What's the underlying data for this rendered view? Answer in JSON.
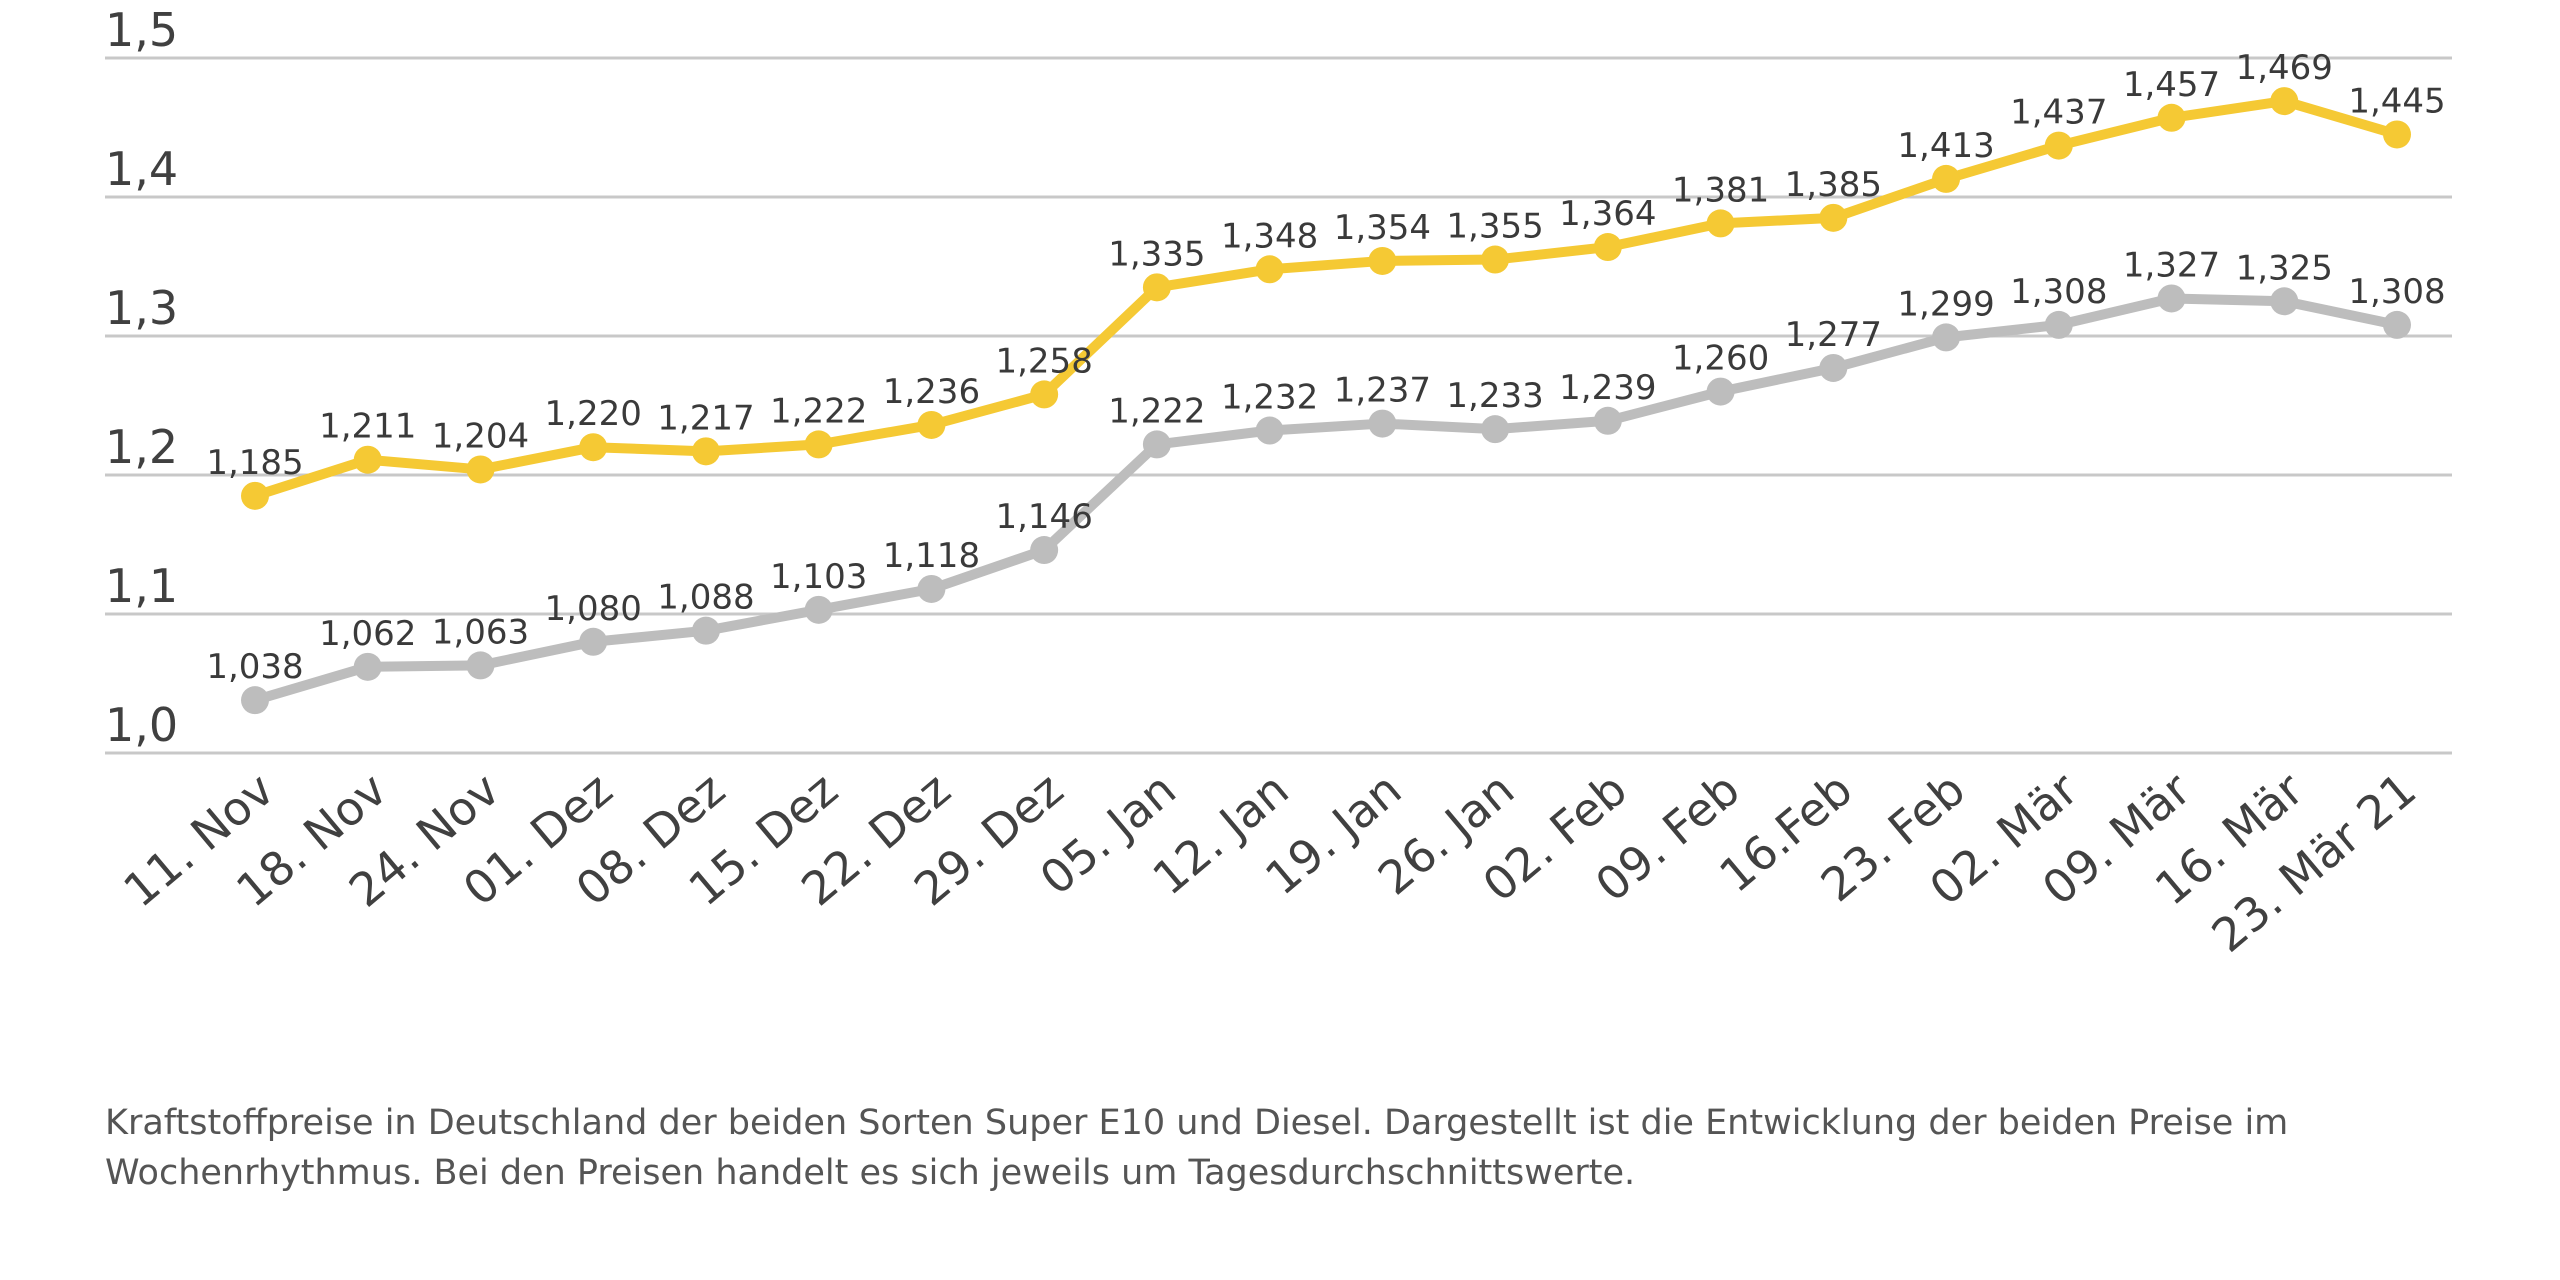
{
  "chart_data": {
    "type": "line",
    "title": "",
    "xlabel": "",
    "ylabel": "",
    "ylim": [
      1.0,
      1.5
    ],
    "yticks": [
      "1,0",
      "1,1",
      "1,2",
      "1,3",
      "1,4",
      "1,5"
    ],
    "yticks_values": [
      1.0,
      1.1,
      1.2,
      1.3,
      1.4,
      1.5
    ],
    "grid": true,
    "legend": "none",
    "categories": [
      "11. Nov",
      "18. Nov",
      "24. Nov",
      "01. Dez",
      "08. Dez",
      "15. Dez",
      "22. Dez",
      "29. Dez",
      "05. Jan",
      "12. Jan",
      "19. Jan",
      "26. Jan",
      "02. Feb",
      "09. Feb",
      "16.Feb",
      "23. Feb",
      "02. Mär",
      "09. Mär",
      "16. Mär",
      "23. Mär 21"
    ],
    "series": [
      {
        "name": "Super E10",
        "color": "#f5c934",
        "values": [
          1.185,
          1.211,
          1.204,
          1.22,
          1.217,
          1.222,
          1.236,
          1.258,
          1.335,
          1.348,
          1.354,
          1.355,
          1.364,
          1.381,
          1.385,
          1.413,
          1.437,
          1.457,
          1.469,
          1.445
        ],
        "labels": [
          "1,185",
          "1,211",
          "1,204",
          "1,220",
          "1,217",
          "1,222",
          "1,236",
          "1,258",
          "1,335",
          "1,348",
          "1,354",
          "1,355",
          "1,364",
          "1,381",
          "1,385",
          "1,413",
          "1,437",
          "1,457",
          "1,469",
          "1,445"
        ]
      },
      {
        "name": "Diesel",
        "color": "#bdbdbd",
        "values": [
          1.038,
          1.062,
          1.063,
          1.08,
          1.088,
          1.103,
          1.118,
          1.146,
          1.222,
          1.232,
          1.237,
          1.233,
          1.239,
          1.26,
          1.277,
          1.299,
          1.308,
          1.327,
          1.325,
          1.308
        ],
        "labels": [
          "1,038",
          "1,062",
          "1,063",
          "1,080",
          "1,088",
          "1,103",
          "1,118",
          "1,146",
          "1,222",
          "1,232",
          "1,237",
          "1,233",
          "1,239",
          "1,260",
          "1,277",
          "1,299",
          "1,308",
          "1,327",
          "1,325",
          "1,308"
        ]
      }
    ]
  },
  "caption": "Kraftstoffpreise in Deutschland der beiden Sorten Super E10 und Diesel. Dargestellt ist die Entwicklung der beiden Preise im Wochenrhythmus. Bei den Preisen handelt es sich jeweils um Tagesdurchschnittswerte."
}
